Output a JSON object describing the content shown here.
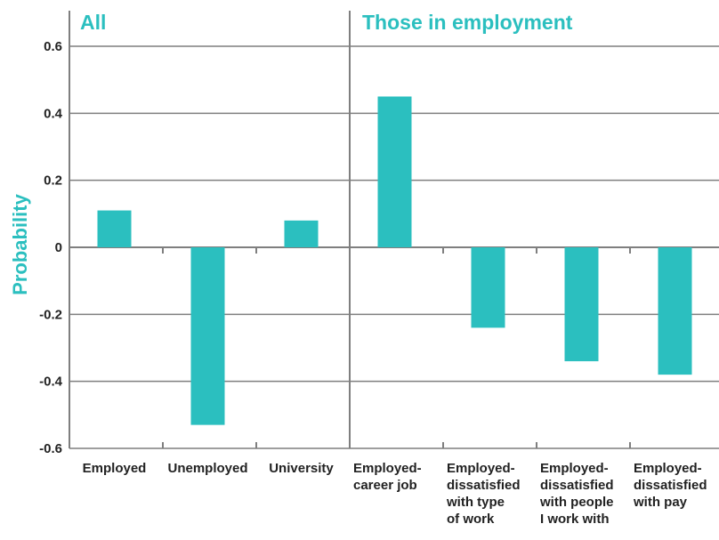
{
  "chart_data": {
    "type": "bar",
    "ylabel": "Probability",
    "ylim": [
      -0.6,
      0.6
    ],
    "yticks": [
      "0.6",
      "0.4",
      "0.2",
      "0",
      "-0.2",
      "-0.4",
      "-0.6"
    ],
    "grid": true,
    "colors": {
      "bar": "#2bbfbf",
      "label": "#2bbfbf",
      "axis": "#7f7f7f"
    },
    "panels": [
      {
        "label": "All",
        "categories": [
          [
            "Employed"
          ],
          [
            "Unemployed"
          ],
          [
            "University"
          ]
        ],
        "values": [
          0.11,
          -0.53,
          0.08
        ]
      },
      {
        "label": "Those in employment",
        "categories": [
          [
            "Employed-",
            "career job"
          ],
          [
            "Employed-",
            "dissatisfied",
            "with type",
            "of work"
          ],
          [
            "Employed-",
            "dissatisfied",
            "with people",
            "I work with"
          ],
          [
            "Employed-",
            "dissatisfied",
            "with pay"
          ]
        ],
        "values": [
          0.45,
          -0.24,
          -0.34,
          -0.38
        ]
      }
    ]
  }
}
